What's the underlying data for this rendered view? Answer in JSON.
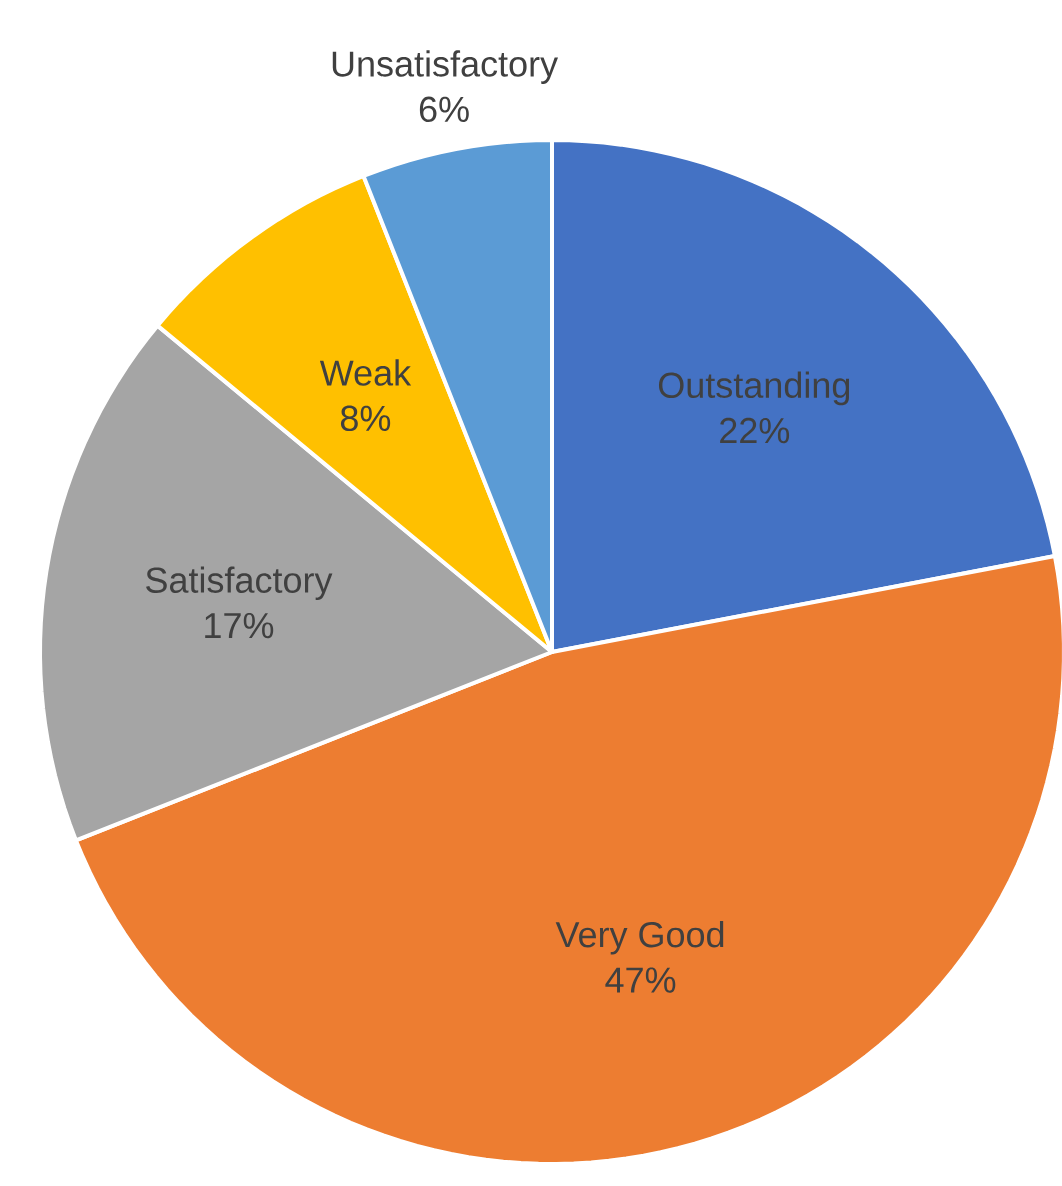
{
  "chart_data": {
    "type": "pie",
    "categories": [
      "Outstanding",
      "Very Good",
      "Satisfactory",
      "Weak",
      "Unsatisfactory"
    ],
    "values": [
      22,
      47,
      17,
      8,
      6
    ],
    "value_labels": [
      "22%",
      "47%",
      "17%",
      "8%",
      "6%"
    ],
    "colors": [
      "#4472c4",
      "#ed7d31",
      "#a5a5a5",
      "#ffc000",
      "#5b9bd5"
    ]
  }
}
